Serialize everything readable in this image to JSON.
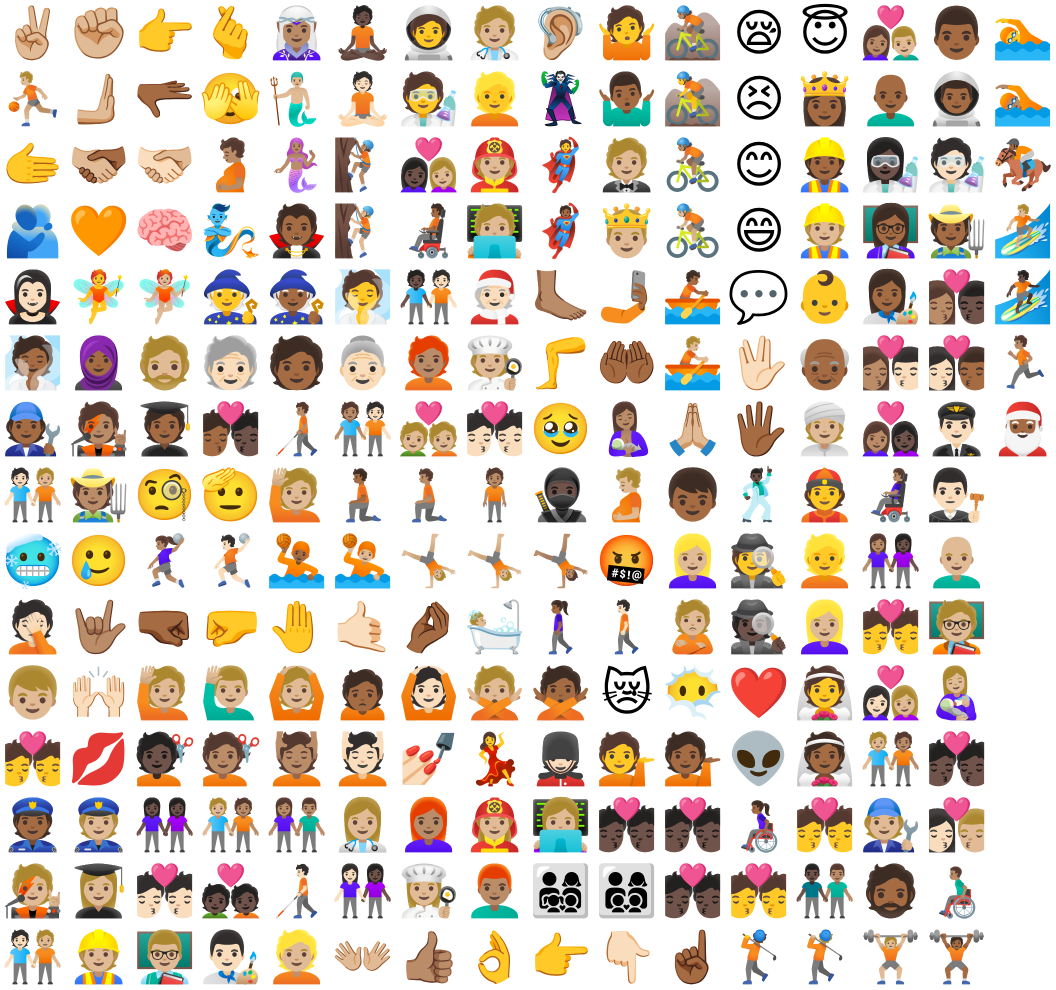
{
  "sheet": {
    "columns": 16,
    "rows": 15,
    "emoji": [
      [
        "✌🏼",
        "✊🏼",
        "👉",
        "🫰",
        "🧝🏽‍♀️",
        "🧘🏿",
        "🧑‍🚀",
        "🧑🏼‍⚕️",
        "🦻🏼",
        "🤷",
        "🚵🏽",
        "😪",
        "😇",
        "👩🏽‍❤️‍👨🏼",
        "👨🏾",
        "🏊"
      ],
      [
        "⛹🏼",
        "🫸🏼",
        "🫳🏾",
        "🫣",
        "🧜🏼‍♂️",
        "🧘🏻",
        "🧑‍🔬",
        "👱",
        "🦹",
        "🤷🏾‍♂️",
        "🚵",
        "😣",
        "👸🏾",
        "👨🏾‍🦲",
        "👨🏾‍🚀",
        "🏊🏽"
      ],
      [
        "🫱",
        "🫱🏼‍🫲🏾",
        "🫱🏻‍🫲🏼",
        "🫄🏽",
        "🧜🏽‍♀️",
        "🧗🏽",
        "👩🏿‍❤️‍👩🏼",
        "🧑🏼‍🚒",
        "🦸",
        "🤵🏼",
        "🚴🏽",
        "😊",
        "👷🏾",
        "👩🏿‍🔬",
        "🧑🏻‍🔬",
        "🏇🏾"
      ],
      [
        "🫂",
        "🧡",
        "🧠",
        "🧞",
        "🧛🏾",
        "🧗🏼",
        "🧑🏾‍🦼",
        "🧑🏼‍💻",
        "🦸🏾",
        "🤴🏼",
        "🚴🏼",
        "😄",
        "👷🏼",
        "👩🏾‍🏫",
        "🧑🏾‍🌾",
        "🏄🏼"
      ],
      [
        "🧛🏻‍♀️",
        "🧚",
        "🧚🏼",
        "🧙",
        "🧙🏾",
        "🧖",
        "🧑🏿‍🤝‍🧑🏻",
        "🧑🏻‍🎄",
        "🦶🏽",
        "🤳🏾",
        "🚣🏾",
        "💬",
        "👶",
        "👩🏾‍🎨",
        "👩🏽‍❤️‍💋‍👨🏿",
        "🏄🏿"
      ],
      [
        "🧖🏾",
        "🧕🏾",
        "🧔🏼",
        "🧓🏻",
        "🧑🏾",
        "👵🏻",
        "🧑🏽‍🦰",
        "🧑🏼‍🍳",
        "🦵",
        "🤲🏾",
        "🚣🏼",
        "🖖🏻",
        "👴🏾",
        "👩🏽‍❤️‍💋‍👨🏻",
        "👩🏻‍❤️‍💋‍👨🏾",
        "🏃🏽"
      ],
      [
        "🧑🏾‍🔧",
        "🧑🏽‍🎤",
        "🧑🏾‍🎓",
        "🧑🏾‍❤️‍💋‍🧑🏿",
        "🧑🏽‍🦯",
        "🧑🏽‍🤝‍🧑🏻",
        "💑🏼",
        "💏🏻",
        "🥹",
        "🤱🏽",
        "🙏🏼",
        "🖐🏾",
        "👳🏼",
        "👩🏽‍❤️‍👩🏿",
        "👨🏻‍✈️",
        "🎅🏾"
      ],
      [
        "🧑🏻‍🤝‍🧑🏼",
        "🧑🏽‍🌾",
        "🧐",
        "🫡",
        "🙋🏼",
        "🧎🏾",
        "🧎🏽",
        "🧍🏽",
        "🥷🏿",
        "🫄🏼",
        "👦🏾",
        "🕺🏿",
        "👲",
        "👩🏽‍🦼",
        "👨🏻‍⚖️",
        ""
      ],
      [
        "🥶",
        "🥲",
        "🤾🏽‍♀️",
        "🤾🏻",
        "🤽🏾",
        "🤽🏼",
        "🤸🏼",
        "🤸🏼",
        "🤸🏽",
        "🤬",
        "👱🏼‍♀️",
        "🕵️",
        "👱",
        "👩🏽‍🤝‍👩🏿",
        "👨🏼‍🦲",
        ""
      ],
      [
        "🤦🏻",
        "🤟🏽",
        "🤜🏾",
        "🤛",
        "🤚",
        "🤙🏻",
        "🤌🏾",
        "🛀🏼",
        "🚶🏾‍♀️",
        "🚶🏻",
        "🙎🏼",
        "🕵🏿",
        "👱🏼‍♀️",
        "💏",
        "🧑🏼‍🏫",
        ""
      ],
      [
        "👦🏼",
        "🙌🏻",
        "🙋🏼",
        "🙋🏼‍♂️",
        "🙆🏼",
        "🙍🏾",
        "🙆🏻",
        "🙅🏼",
        "🙅🏾",
        "😿",
        "😶‍🌫️",
        "❤️",
        "👰",
        "👩🏻‍❤️‍👩🏼",
        "👩🏼‍🍼",
        ""
      ],
      [
        "💏",
        "💋",
        "💇🏿",
        "💇🏽",
        "💆🏽",
        "💆🏻",
        "💅🏻",
        "💃",
        "💂🏻",
        "💁",
        "💁🏾",
        "👽",
        "👰🏾",
        "🧑🏼‍🤝‍🧑🏽",
        "💏🏿",
        ""
      ],
      [
        "👮🏾",
        "👮🏼",
        "👭🏿",
        "🧑🏼‍🤝‍🧑🏽",
        "👫🏽",
        "👩🏼‍⚕️",
        "👩🏽‍🦰",
        "👩🏼‍🚒",
        "👩🏼‍💻",
        "💏🏿",
        "💏🏿",
        "👩🏾‍🦽",
        "💏",
        "🧑🏼‍🔧",
        "👩🏻‍❤️‍💋‍👨🏼",
        ""
      ],
      [
        "🧑🏼‍🎤",
        "👩🏼‍🎓",
        "💏🏻",
        "💑🏿",
        "🧑🏻‍🦯",
        "👩🏻‍🤝‍👩🏿",
        "👩🏼‍🍳",
        "👨🏽‍🦰",
        "👨‍👩‍👧‍👦",
        "👨‍👩‍👦‍👦",
        "💏🏿",
        "💏",
        "👨🏿‍🤝‍👨🏽",
        "🧔🏾",
        "👨🏽‍🦽",
        ""
      ],
      [
        "🧑🏻‍🤝‍🧑🏼",
        "👷🏼",
        "👨🏼‍🏫",
        "👨🏻‍🎨",
        "👱🏼",
        "👐🏼",
        "👍🏽",
        "👌",
        "👉",
        "👇🏻",
        "☝🏾",
        "🏌️",
        "🏌🏼",
        "🏋🏼",
        "🏋🏾",
        ""
      ]
    ]
  }
}
